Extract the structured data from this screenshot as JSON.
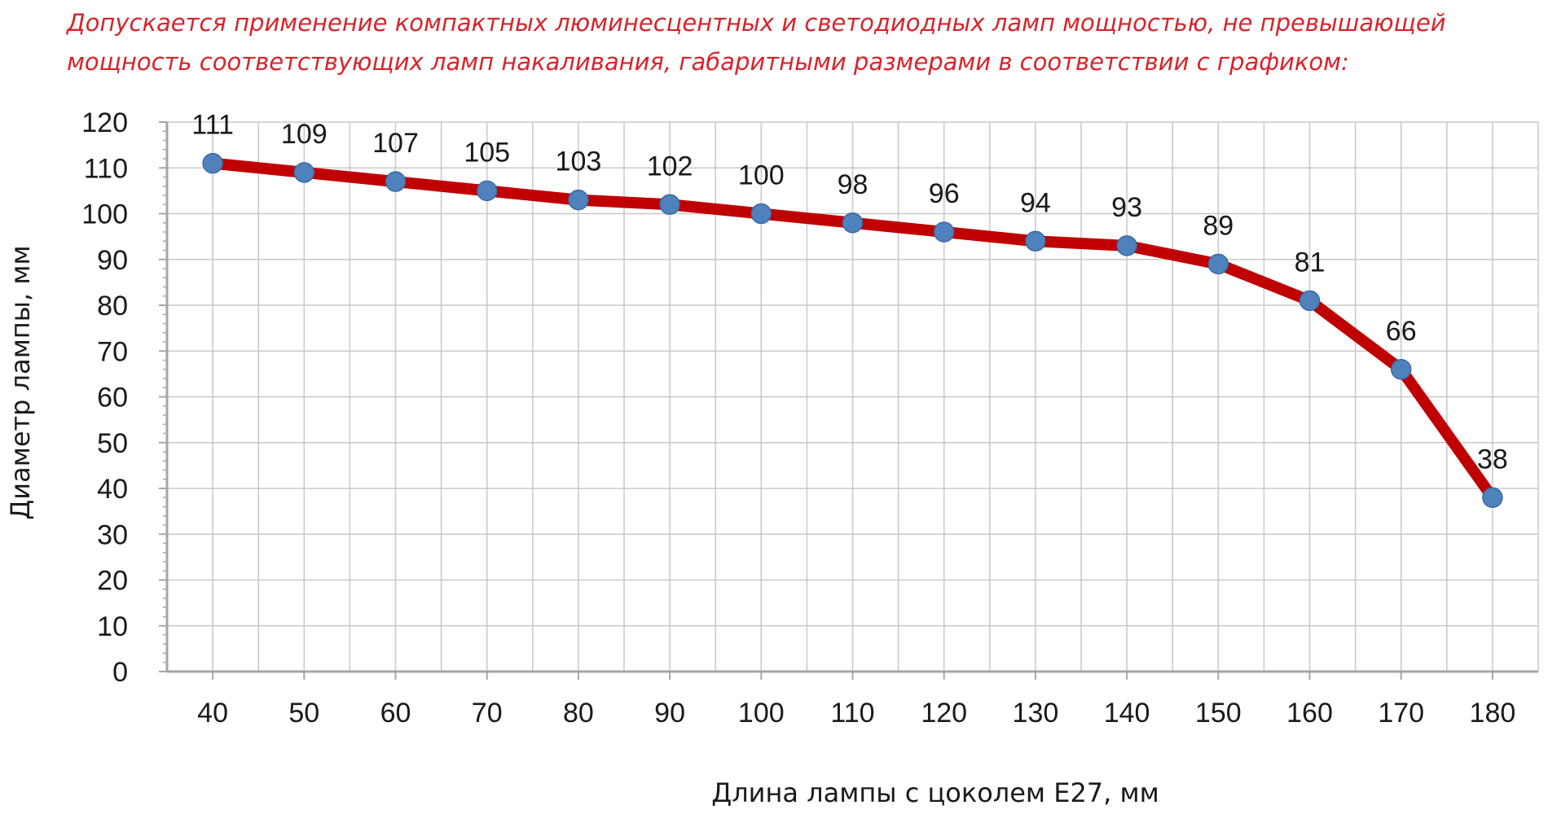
{
  "intro": {
    "line1": "Допускается применение компактных люминесцентных и светодиодных ламп мощностью, не превышающей",
    "line2": "мощность соответствующих ламп накаливания, габаритными размерами в соответствии с графиком:"
  },
  "colors": {
    "intro_text": "#d8232a",
    "series_line": "#c00000",
    "marker": "#4f81bd",
    "grid": "#c8c8c8",
    "axis": "#a6a6a6"
  },
  "chart_data": {
    "type": "line",
    "xlabel": "Длина лампы с цоколем Е27, мм",
    "ylabel": "Диаметр лампы, мм",
    "xlim": [
      35,
      185
    ],
    "ylim": [
      0,
      120
    ],
    "y_ticks": [
      0,
      10,
      20,
      30,
      40,
      50,
      60,
      70,
      80,
      90,
      100,
      110,
      120
    ],
    "x": [
      40,
      50,
      60,
      70,
      80,
      90,
      100,
      110,
      120,
      130,
      140,
      150,
      160,
      170,
      180
    ],
    "series": [
      {
        "values": [
          111,
          109,
          107,
          105,
          103,
          102,
          100,
          98,
          96,
          94,
          93,
          89,
          81,
          66,
          38
        ],
        "labels": [
          "111",
          "109",
          "107",
          "105",
          "103",
          "102",
          "100",
          "98",
          "96",
          "94",
          "93",
          "89",
          "81",
          "66",
          "38"
        ]
      }
    ],
    "grid": true,
    "legend": "none"
  }
}
